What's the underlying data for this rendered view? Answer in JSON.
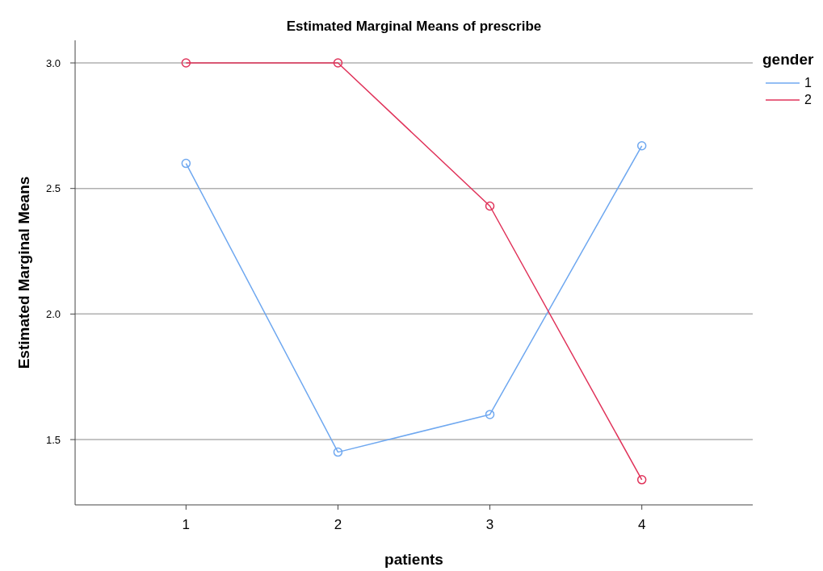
{
  "chart_data": {
    "type": "line",
    "title": "Estimated Marginal Means of prescribe",
    "xlabel": "patients",
    "ylabel": "Estimated Marginal Means",
    "legend_title": "gender",
    "categories": [
      "1",
      "2",
      "3",
      "4"
    ],
    "series": [
      {
        "name": "1",
        "color": "#6fa8f0",
        "values": [
          2.6,
          1.45,
          1.6,
          2.67
        ]
      },
      {
        "name": "2",
        "color": "#e0335a",
        "values": [
          3.0,
          3.0,
          2.43,
          1.34
        ]
      }
    ],
    "ylim": [
      1.24,
      3.09
    ],
    "yticks": [
      {
        "value": 1.5,
        "label": "1.5"
      },
      {
        "value": 2.0,
        "label": "2.0"
      },
      {
        "value": 2.5,
        "label": "2.5"
      },
      {
        "value": 3.0,
        "label": "3.0"
      }
    ],
    "grid": "y",
    "legend": "top right",
    "marker": "circle",
    "line_style": "solid"
  }
}
